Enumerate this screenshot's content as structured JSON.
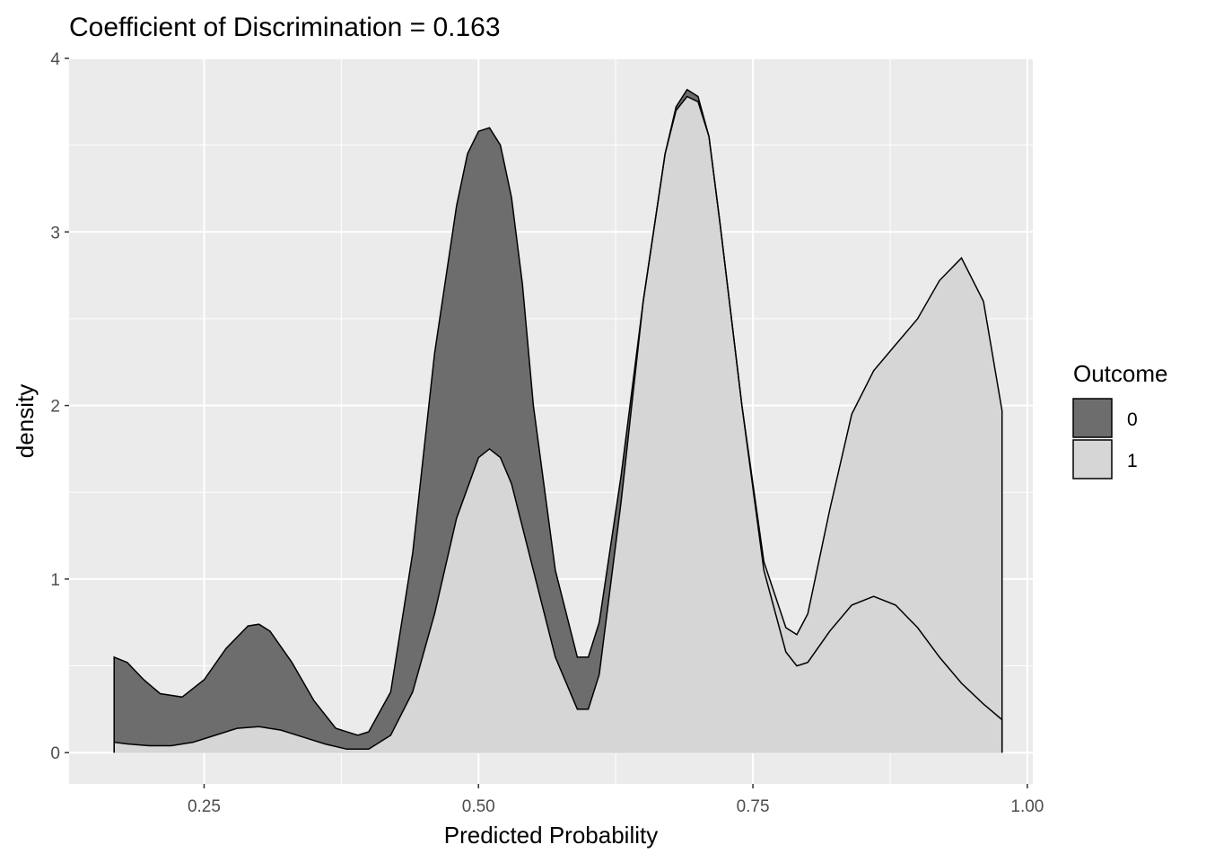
{
  "chart_data": {
    "type": "area",
    "title": "Coefficient of Discrimination = 0.163",
    "xlabel": "Predicted Probability",
    "ylabel": "density",
    "xlim": [
      0.127,
      1.005
    ],
    "ylim": [
      -0.18,
      4.0
    ],
    "x_ticks": [
      0.25,
      0.5,
      0.75,
      1.0
    ],
    "x_tick_labels": [
      "0.25",
      "0.50",
      "0.75",
      "1.00"
    ],
    "y_ticks": [
      0,
      1,
      2,
      3,
      4
    ],
    "y_tick_labels": [
      "0",
      "1",
      "2",
      "3",
      "4"
    ],
    "grid": true,
    "panel_background": "#ebebeb",
    "legend": {
      "title": "Outcome",
      "placement": "right"
    },
    "series": [
      {
        "name": "0",
        "color": "#6d6d6d",
        "x": [
          0.168,
          0.18,
          0.195,
          0.21,
          0.23,
          0.25,
          0.27,
          0.29,
          0.3,
          0.31,
          0.33,
          0.35,
          0.37,
          0.39,
          0.4,
          0.42,
          0.44,
          0.46,
          0.48,
          0.49,
          0.5,
          0.51,
          0.52,
          0.53,
          0.54,
          0.55,
          0.57,
          0.59,
          0.6,
          0.61,
          0.63,
          0.65,
          0.67,
          0.68,
          0.69,
          0.7,
          0.71,
          0.72,
          0.74,
          0.76,
          0.78,
          0.79,
          0.8,
          0.82,
          0.84,
          0.86,
          0.88,
          0.9,
          0.92,
          0.94,
          0.96,
          0.977
        ],
        "values": [
          0.55,
          0.52,
          0.42,
          0.34,
          0.32,
          0.42,
          0.6,
          0.73,
          0.74,
          0.7,
          0.52,
          0.3,
          0.14,
          0.1,
          0.12,
          0.35,
          1.15,
          2.3,
          3.15,
          3.45,
          3.58,
          3.6,
          3.5,
          3.2,
          2.7,
          2.0,
          1.05,
          0.55,
          0.55,
          0.75,
          1.6,
          2.6,
          3.45,
          3.72,
          3.82,
          3.78,
          3.55,
          3.05,
          2.0,
          1.05,
          0.58,
          0.5,
          0.52,
          0.7,
          0.85,
          0.9,
          0.85,
          0.72,
          0.55,
          0.4,
          0.28,
          0.19
        ]
      },
      {
        "name": "1",
        "color": "#d6d6d6",
        "x": [
          0.168,
          0.18,
          0.2,
          0.22,
          0.24,
          0.26,
          0.28,
          0.3,
          0.32,
          0.34,
          0.36,
          0.38,
          0.4,
          0.42,
          0.44,
          0.46,
          0.48,
          0.5,
          0.51,
          0.52,
          0.53,
          0.55,
          0.57,
          0.59,
          0.6,
          0.61,
          0.63,
          0.65,
          0.67,
          0.68,
          0.69,
          0.7,
          0.71,
          0.72,
          0.74,
          0.76,
          0.78,
          0.79,
          0.8,
          0.82,
          0.84,
          0.86,
          0.88,
          0.9,
          0.92,
          0.94,
          0.96,
          0.977
        ],
        "values": [
          0.06,
          0.05,
          0.04,
          0.04,
          0.06,
          0.1,
          0.14,
          0.15,
          0.13,
          0.09,
          0.05,
          0.02,
          0.02,
          0.1,
          0.35,
          0.8,
          1.35,
          1.7,
          1.75,
          1.7,
          1.55,
          1.05,
          0.55,
          0.25,
          0.25,
          0.45,
          1.45,
          2.6,
          3.45,
          3.7,
          3.78,
          3.75,
          3.55,
          3.05,
          2.0,
          1.1,
          0.72,
          0.68,
          0.8,
          1.4,
          1.95,
          2.2,
          2.35,
          2.5,
          2.72,
          2.85,
          2.6,
          1.97
        ]
      }
    ]
  }
}
